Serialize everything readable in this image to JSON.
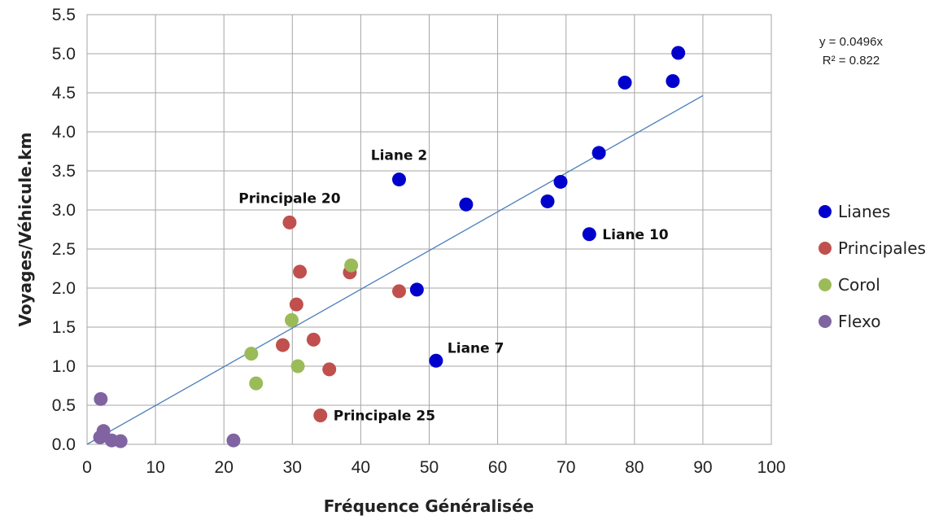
{
  "chart_data": {
    "type": "scatter",
    "xlabel": "Fréquence Généralisée",
    "ylabel": "Voyages/Véhicule.km",
    "xlim": [
      0,
      100
    ],
    "ylim": [
      0,
      5.5
    ],
    "x_ticks": [
      "0",
      "10",
      "20",
      "30",
      "40",
      "50",
      "60",
      "70",
      "80",
      "90",
      "100"
    ],
    "y_ticks": [
      "0.0",
      "0.5",
      "1.0",
      "1.5",
      "2.0",
      "2.5",
      "3.0",
      "3.5",
      "4.0",
      "4.5",
      "5.0",
      "5.5"
    ],
    "grid": true,
    "legend_position": "right",
    "series": [
      {
        "name": "Lianes",
        "color": "#0000cc",
        "points": [
          [
            45.6,
            3.39
          ],
          [
            55.4,
            3.07
          ],
          [
            48.2,
            1.98
          ],
          [
            51.0,
            1.07
          ],
          [
            67.3,
            3.11
          ],
          [
            69.2,
            3.36
          ],
          [
            73.4,
            2.69
          ],
          [
            74.8,
            3.73
          ],
          [
            78.6,
            4.63
          ],
          [
            85.6,
            4.65
          ],
          [
            86.4,
            5.01
          ]
        ]
      },
      {
        "name": "Principales",
        "color": "#c0504d",
        "points": [
          [
            29.6,
            2.84
          ],
          [
            31.1,
            2.21
          ],
          [
            30.6,
            1.79
          ],
          [
            38.4,
            2.2
          ],
          [
            45.6,
            1.96
          ],
          [
            28.6,
            1.27
          ],
          [
            33.1,
            1.34
          ],
          [
            35.4,
            0.96
          ],
          [
            34.1,
            0.37
          ]
        ]
      },
      {
        "name": "Corol",
        "color": "#9bbb59",
        "points": [
          [
            38.6,
            2.29
          ],
          [
            29.9,
            1.59
          ],
          [
            24.0,
            1.16
          ],
          [
            30.8,
            1.0
          ],
          [
            24.7,
            0.78
          ]
        ]
      },
      {
        "name": "Flexo",
        "color": "#8064a2",
        "points": [
          [
            2.0,
            0.58
          ],
          [
            2.4,
            0.17
          ],
          [
            1.9,
            0.09
          ],
          [
            3.6,
            0.05
          ],
          [
            4.9,
            0.04
          ],
          [
            21.4,
            0.05
          ]
        ]
      }
    ],
    "trendline": {
      "slope": 0.0496,
      "x_range": [
        0,
        90
      ],
      "color": "#4a7ebb",
      "equation": "y = 0.0496x",
      "r_squared": "R² = 0.822"
    },
    "annotations": [
      {
        "text": "Liane 2",
        "x": 45.6,
        "y": 3.39,
        "anchor": "above"
      },
      {
        "text": "Principale 20",
        "x": 29.6,
        "y": 2.84,
        "anchor": "above"
      },
      {
        "text": "Liane 10",
        "x": 73.4,
        "y": 2.69,
        "anchor": "right"
      },
      {
        "text": "Liane 7",
        "x": 51.0,
        "y": 1.07,
        "anchor": "upper-right"
      },
      {
        "text": "Principale 25",
        "x": 34.1,
        "y": 0.37,
        "anchor": "right"
      }
    ]
  }
}
